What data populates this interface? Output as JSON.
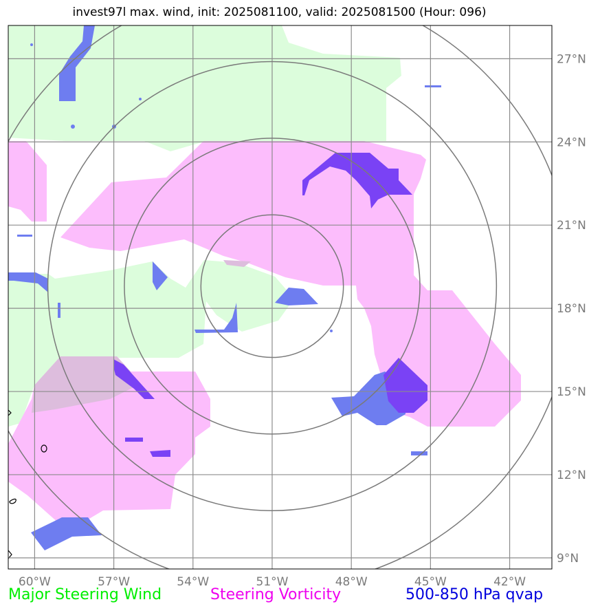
{
  "title": "invest97l max. wind, init: 2025081100, valid: 2025081500 (Hour: 096)",
  "map": {
    "lon_range": [
      -61,
      -40.4
    ],
    "lat_range": [
      8.6,
      28.2
    ],
    "center": {
      "lon": -51,
      "lat": 18.8
    },
    "range_rings_deg": [
      2.7,
      5.6,
      8.5,
      11.4
    ]
  },
  "axes": {
    "lon_ticks": [
      {
        "value": -60,
        "label": "60°W"
      },
      {
        "value": -57,
        "label": "57°W"
      },
      {
        "value": -54,
        "label": "54°W"
      },
      {
        "value": -51,
        "label": "51°W"
      },
      {
        "value": -48,
        "label": "48°W"
      },
      {
        "value": -45,
        "label": "45°W"
      },
      {
        "value": -42,
        "label": "42°W"
      }
    ],
    "lat_ticks": [
      {
        "value": 9,
        "label": "9°N"
      },
      {
        "value": 12,
        "label": "12°N"
      },
      {
        "value": 15,
        "label": "15°N"
      },
      {
        "value": 18,
        "label": "18°N"
      },
      {
        "value": 21,
        "label": "21°N"
      },
      {
        "value": 24,
        "label": "24°N"
      },
      {
        "value": 27,
        "label": "27°N"
      }
    ]
  },
  "legend": {
    "wind": {
      "label": "Major Steering Wind",
      "color": "#00ee00"
    },
    "vorticity": {
      "label": "Steering Vorticity",
      "color": "#ee00ee"
    },
    "qvap": {
      "label": "500-850 hPa qvap",
      "color": "#0000dd"
    }
  },
  "colors": {
    "wind_fill": "#dcfddc",
    "vorticity_fill": "#fcbdfc",
    "qvap_light": "#6e7df0",
    "qvap_dark": "#7a42f5",
    "grid": "#8c8c8c",
    "rings": "#7a7a7a"
  }
}
